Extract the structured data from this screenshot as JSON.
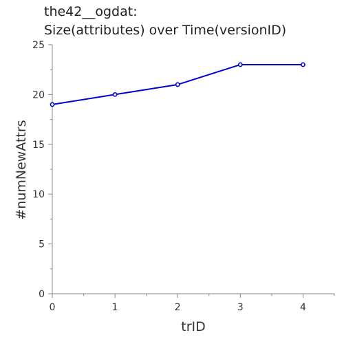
{
  "chart_data": {
    "type": "line",
    "title_lines": [
      "the42__ogdat:",
      "Size(attributes) over Time(versionID)"
    ],
    "xlabel": "trID",
    "ylabel": "#numNewAttrs",
    "x": [
      0,
      1,
      2,
      3,
      4
    ],
    "series": [
      {
        "values": [
          19,
          20,
          21,
          23,
          23
        ],
        "color": "#0000cc"
      }
    ],
    "xlim": [
      0,
      4.5
    ],
    "ylim": [
      0,
      25
    ],
    "x_ticks": [
      "0",
      "1",
      "2",
      "3",
      "4"
    ],
    "y_ticks": [
      "0",
      "5",
      "10",
      "15",
      "20",
      "25"
    ],
    "grid": false,
    "axis_color": "#888888"
  }
}
